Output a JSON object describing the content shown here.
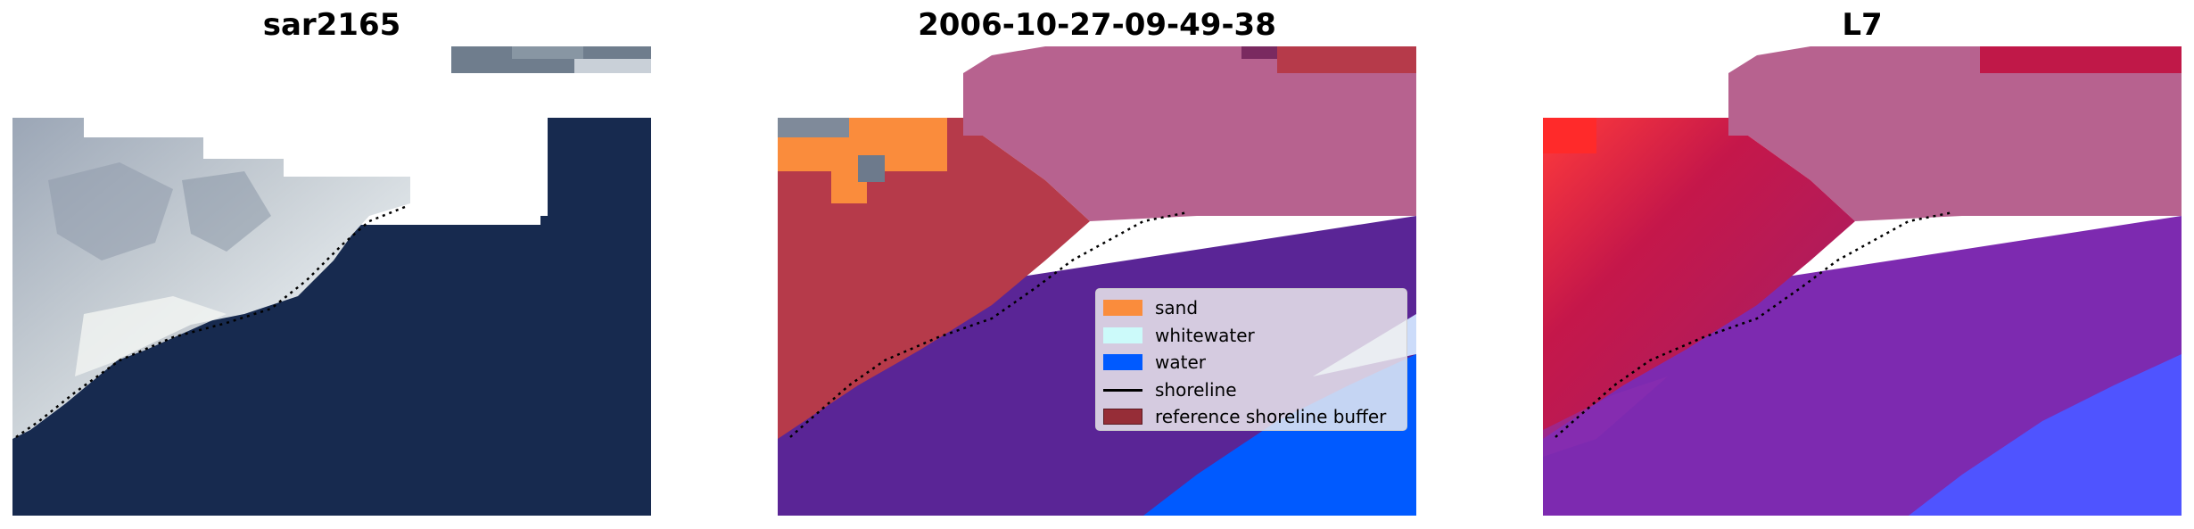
{
  "panels": [
    {
      "title": "sar2165"
    },
    {
      "title": "2006-10-27-09-49-38"
    },
    {
      "title": "L7"
    }
  ],
  "legend": {
    "items": [
      {
        "label": "sand",
        "color": "#fa8c3c"
      },
      {
        "label": "whitewater",
        "color": "#ccfafa"
      },
      {
        "label": "water",
        "color": "#005aff"
      },
      {
        "label": "shoreline",
        "color": "#000000"
      },
      {
        "label": "reference shoreline buffer",
        "color": "#962d37"
      }
    ]
  },
  "colors": {
    "satellite_water": "#172a4f",
    "satellite_land": "#a9b3bf",
    "class_ocean": "#5a2596",
    "class_land_pink": "#b7628f",
    "class_buffer": "#b63a4a",
    "l7_red": "#c5174a",
    "l7_purple": "#7d2ab0",
    "l7_blue": "#4f54ff"
  }
}
